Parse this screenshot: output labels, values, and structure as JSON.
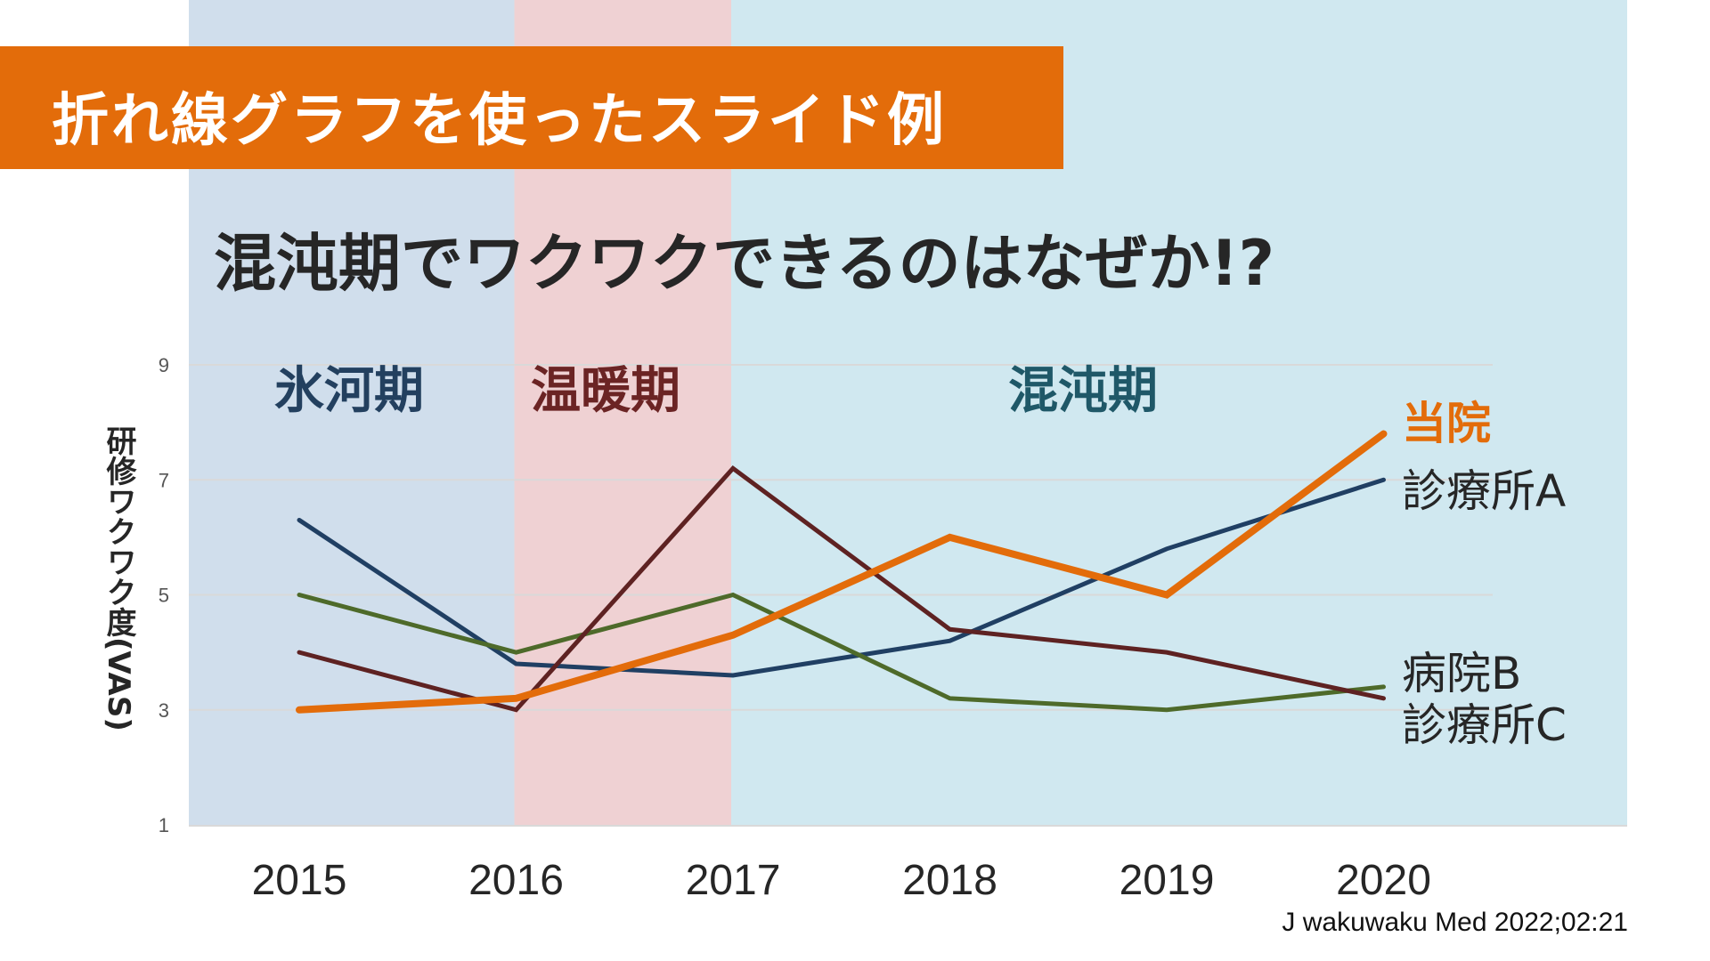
{
  "slide": {
    "banner_title": "折れ線グラフを使ったスライド例",
    "subtitle": "混沌期でワクワクできるのはなぜか!?",
    "citation": "J wakuwaku Med 2022;02:21"
  },
  "colors": {
    "banner": "#E36C0A",
    "band_ice_age": "#D0DEEC",
    "band_warm": "#EFD1D3",
    "band_chaos": "#D0E8F0",
    "series_own": "#E36C0A",
    "series_clinic_a": "#203F63",
    "series_hospital_b": "#4E6A2A",
    "series_clinic_c": "#5E2222",
    "label_ice_age": "#23405F",
    "label_warm": "#6B2424",
    "label_chaos": "#1F5868"
  },
  "chart_data": {
    "type": "line",
    "title": "混沌期でワクワクできるのはなぜか!?",
    "xlabel": "",
    "ylabel": "研修ワクワク度(VAS)",
    "x": [
      "2015",
      "2016",
      "2017",
      "2018",
      "2019",
      "2020"
    ],
    "ylim": [
      1,
      9
    ],
    "yticks": [
      1,
      3,
      5,
      7,
      9
    ],
    "grid": true,
    "legend": "right (direct labels at line ends)",
    "periods": [
      {
        "name": "氷河期",
        "from": "2015",
        "to": "2016"
      },
      {
        "name": "温暖期",
        "from": "2016",
        "to": "2017"
      },
      {
        "name": "混沌期",
        "from": "2017",
        "to": "2020"
      }
    ],
    "series": [
      {
        "name": "当院",
        "key": "own",
        "values": [
          3.0,
          3.2,
          4.3,
          6.0,
          5.0,
          7.8
        ],
        "emphasis": true
      },
      {
        "name": "診療所A",
        "key": "clinic_a",
        "values": [
          6.3,
          3.8,
          3.6,
          4.2,
          5.8,
          7.0
        ]
      },
      {
        "name": "病院B",
        "key": "hospital_b",
        "values": [
          5.0,
          4.0,
          5.0,
          3.2,
          3.0,
          3.4
        ]
      },
      {
        "name": "診療所C",
        "key": "clinic_c",
        "values": [
          4.0,
          3.0,
          7.2,
          4.4,
          4.0,
          3.2
        ]
      }
    ]
  }
}
